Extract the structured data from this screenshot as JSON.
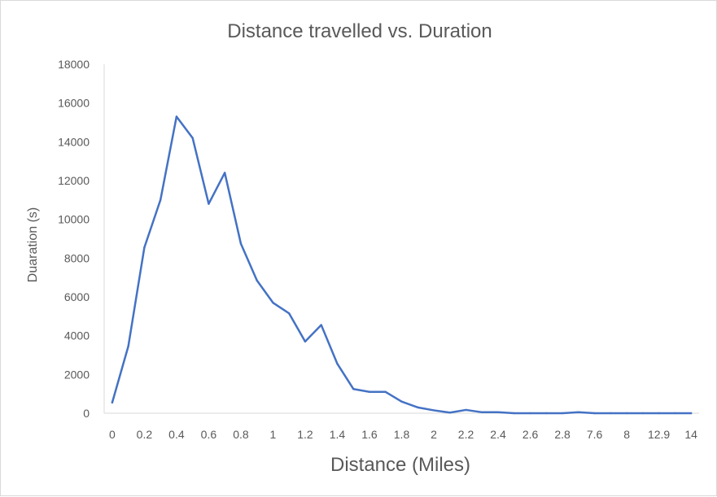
{
  "chart_data": {
    "type": "line",
    "title": "Distance travelled vs. Duration",
    "xlabel": "Distance (Miles)",
    "ylabel": "Duaration (s)",
    "ylim": [
      0,
      18000
    ],
    "y_ticks": [
      0,
      2000,
      4000,
      6000,
      8000,
      10000,
      12000,
      14000,
      16000,
      18000
    ],
    "x": [
      "0",
      "0.1",
      "0.2",
      "0.3",
      "0.4",
      "0.5",
      "0.6",
      "0.7",
      "0.8",
      "0.9",
      "1",
      "1.1",
      "1.2",
      "1.3",
      "1.4",
      "1.5",
      "1.6",
      "1.7",
      "1.8",
      "1.9",
      "2",
      "2.1",
      "2.2",
      "2.3",
      "2.4",
      "2.5",
      "2.6",
      "2.7",
      "2.8",
      "2.9",
      "7.6",
      "7.7",
      "8",
      "8.2",
      "12.9",
      "13",
      "14"
    ],
    "x_tick_labels": [
      "0",
      "0.2",
      "0.4",
      "0.6",
      "0.8",
      "1",
      "1.2",
      "1.4",
      "1.6",
      "1.8",
      "2",
      "2.2",
      "2.4",
      "2.6",
      "2.8",
      "7.6",
      "8",
      "12.9",
      "14"
    ],
    "values": [
      550,
      3450,
      8550,
      11000,
      15300,
      14200,
      10800,
      12400,
      8750,
      6850,
      5700,
      5150,
      3700,
      4550,
      2550,
      1250,
      1100,
      1100,
      600,
      300,
      150,
      30,
      170,
      50,
      50,
      0,
      0,
      0,
      0,
      50,
      0,
      0,
      0,
      0,
      0,
      0,
      0
    ],
    "line_color": "#4472C4",
    "grid": false
  }
}
